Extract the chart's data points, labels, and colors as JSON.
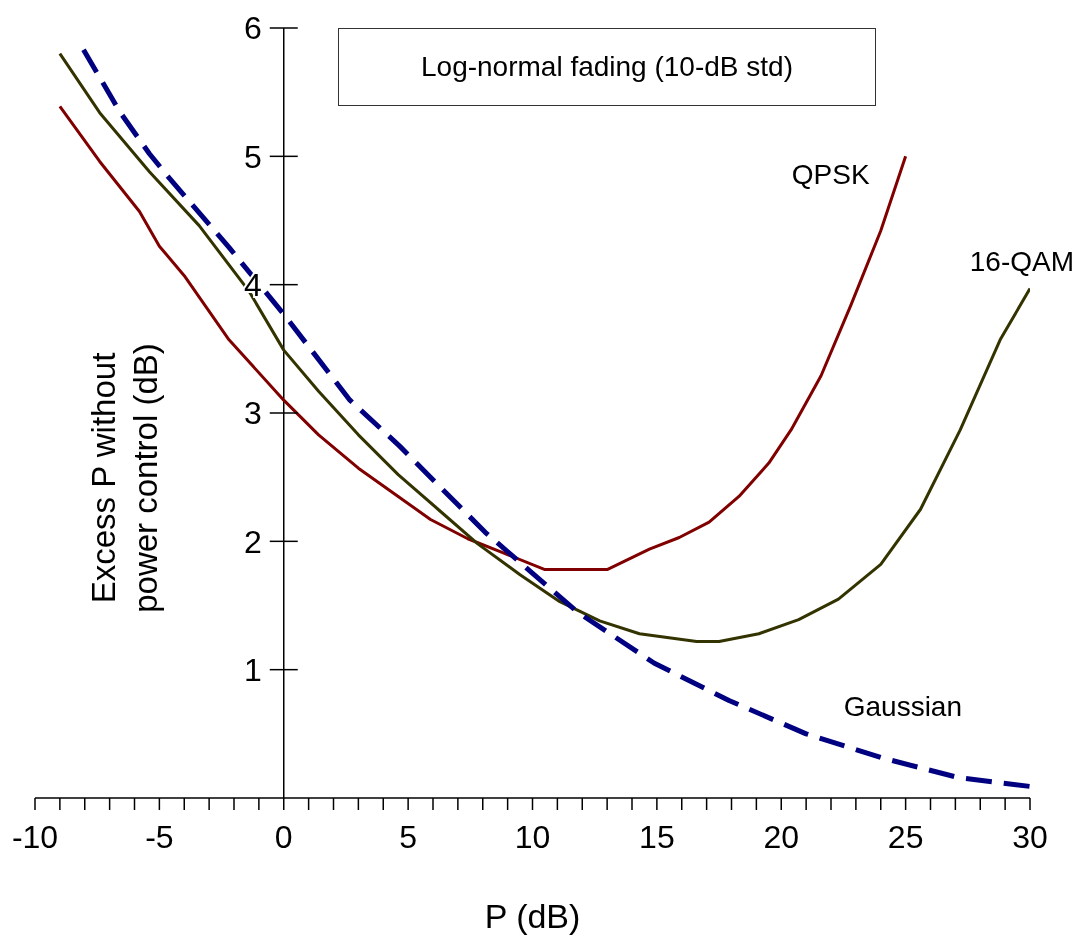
{
  "chart_data": {
    "type": "line",
    "title": "Log-normal fading (10-dB std)",
    "xlabel": "P (dB)",
    "ylabel": "Excess P without power control (dB)",
    "xlim": [
      -10,
      30
    ],
    "ylim": [
      0,
      6
    ],
    "yticks": [
      1,
      2,
      3,
      4,
      5,
      6
    ],
    "xticks": [
      -10,
      {
        "value": -9,
        "label": null
      },
      {
        "value": -8,
        "label": null
      },
      {
        "value": -7,
        "label": null
      },
      {
        "value": -6,
        "label": null
      },
      -5,
      {
        "value": -4,
        "label": null
      },
      {
        "value": -3,
        "label": null
      },
      {
        "value": -2,
        "label": null
      },
      {
        "value": -1,
        "label": null
      },
      0,
      {
        "value": 1,
        "label": null
      },
      {
        "value": 2,
        "label": null
      },
      {
        "value": 3,
        "label": null
      },
      {
        "value": 4,
        "label": null
      },
      5,
      {
        "value": 6,
        "label": null
      },
      {
        "value": 7,
        "label": null
      },
      {
        "value": 8,
        "label": null
      },
      {
        "value": 9,
        "label": null
      },
      10,
      {
        "value": 11,
        "label": null
      },
      {
        "value": 12,
        "label": null
      },
      {
        "value": 13,
        "label": null
      },
      {
        "value": 14,
        "label": null
      },
      15,
      {
        "value": 16,
        "label": null
      },
      {
        "value": 17,
        "label": null
      },
      {
        "value": 18,
        "label": null
      },
      {
        "value": 19,
        "label": null
      },
      20,
      {
        "value": 21,
        "label": null
      },
      {
        "value": 22,
        "label": null
      },
      {
        "value": 23,
        "label": null
      },
      {
        "value": 24,
        "label": null
      },
      25,
      {
        "value": 26,
        "label": null
      },
      {
        "value": 27,
        "label": null
      },
      {
        "value": 28,
        "label": null
      },
      {
        "value": 29,
        "label": null
      },
      30
    ],
    "grid": false,
    "legend": false,
    "marker": "none",
    "series": [
      {
        "name": "QPSK",
        "color": "#800000",
        "line_style": "solid",
        "x": [
          -9,
          -7.4,
          -5.8,
          -5,
          -4,
          -2.2,
          0,
          1.4,
          3,
          4.6,
          5.9,
          7.4,
          8.7,
          10.5,
          13,
          14.7,
          15.9,
          17.1,
          18.3,
          19.5,
          20.4,
          21.6,
          22.8,
          24,
          25
        ],
        "values": [
          5.39,
          4.96,
          4.57,
          4.3,
          4.07,
          3.57,
          3.1,
          2.83,
          2.57,
          2.35,
          2.17,
          2.02,
          1.92,
          1.78,
          1.78,
          1.94,
          2.03,
          2.15,
          2.35,
          2.61,
          2.87,
          3.29,
          3.84,
          4.42,
          5.0
        ]
      },
      {
        "name": "16-QAM",
        "color": "#333300",
        "line_style": "solid",
        "x": [
          -9,
          -7.4,
          -5.4,
          -3.4,
          -1.4,
          0,
          1.4,
          3,
          4.6,
          6.2,
          7.8,
          9.5,
          11.1,
          12.7,
          14.3,
          16.6,
          17.5,
          19.1,
          20.7,
          22.3,
          24,
          25.6,
          27.2,
          28.8,
          30
        ],
        "values": [
          5.8,
          5.34,
          4.88,
          4.46,
          3.95,
          3.49,
          3.17,
          2.83,
          2.52,
          2.25,
          1.98,
          1.74,
          1.53,
          1.38,
          1.28,
          1.22,
          1.22,
          1.28,
          1.39,
          1.55,
          1.82,
          2.25,
          2.87,
          3.57,
          3.97
        ]
      },
      {
        "name": "Gaussian",
        "color": "#000080",
        "line_style": "dashed",
        "x": [
          -8.05,
          -6.6,
          -5.4,
          -4.6,
          -2.2,
          0,
          2.66,
          4.67,
          8.1,
          11.8,
          14.9,
          17.9,
          21,
          24.1,
          27.1,
          30
        ],
        "values": [
          5.83,
          5.35,
          5.02,
          4.83,
          4.29,
          3.77,
          3.1,
          2.74,
          2.07,
          1.45,
          1.05,
          0.76,
          0.5,
          0.31,
          0.16,
          0.09
        ]
      }
    ]
  }
}
